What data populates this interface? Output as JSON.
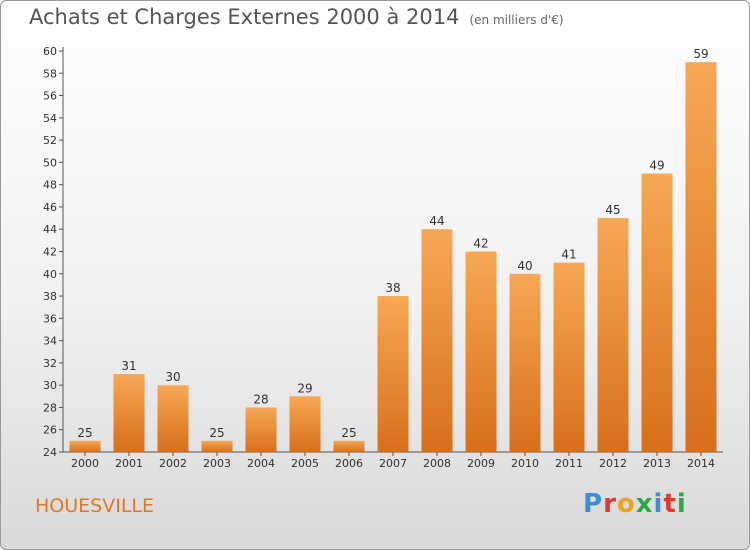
{
  "header": {
    "title": "Achats et Charges Externes 2000 à 2014",
    "unit": "(en milliers d'€)"
  },
  "commune": "HOUESVILLE",
  "logo": {
    "text": "Proxiti",
    "colors": [
      "#3a8fd8",
      "#e2392f",
      "#f0a21a",
      "#2aa84a",
      "#3a8fd8",
      "#e2392f",
      "#2aa84a"
    ]
  },
  "chart_data": {
    "type": "bar",
    "categories": [
      "2000",
      "2001",
      "2002",
      "2003",
      "2004",
      "2005",
      "2006",
      "2007",
      "2008",
      "2009",
      "2010",
      "2011",
      "2012",
      "2013",
      "2014"
    ],
    "values": [
      25,
      31,
      30,
      25,
      28,
      29,
      25,
      38,
      44,
      42,
      40,
      41,
      45,
      49,
      59
    ],
    "ylim": [
      24,
      60
    ],
    "ytick_step": 2,
    "grid": false,
    "bar_color_top": "#f7a854",
    "bar_color_bottom": "#d86f1a"
  }
}
